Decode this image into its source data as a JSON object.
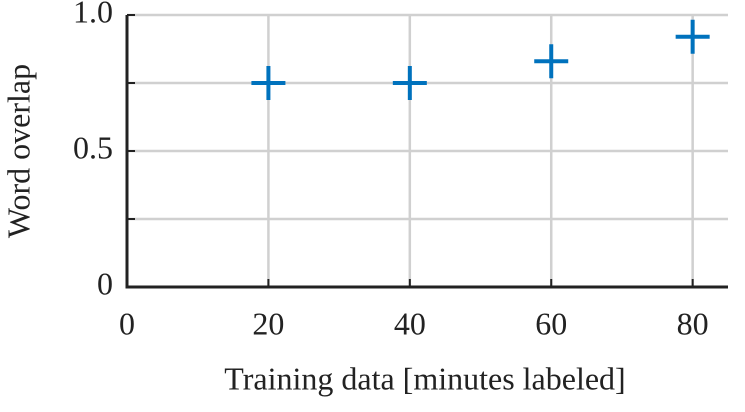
{
  "chart_data": {
    "type": "scatter",
    "xlabel": "Training data [minutes labeled]",
    "ylabel": "Word overlap",
    "x": [
      20,
      40,
      60,
      80
    ],
    "values": [
      0.75,
      0.75,
      0.83,
      0.92
    ],
    "color": "#0072bd",
    "marker": "plus",
    "xlim": [
      0,
      85
    ],
    "xticks": [
      0,
      20,
      40,
      60,
      80
    ],
    "ylim": [
      0,
      1
    ],
    "yticks": [
      0,
      0.5,
      {
        "value": 1,
        "label": "1.0"
      }
    ],
    "yminor": [
      0.25,
      0.75
    ],
    "grid": true
  }
}
